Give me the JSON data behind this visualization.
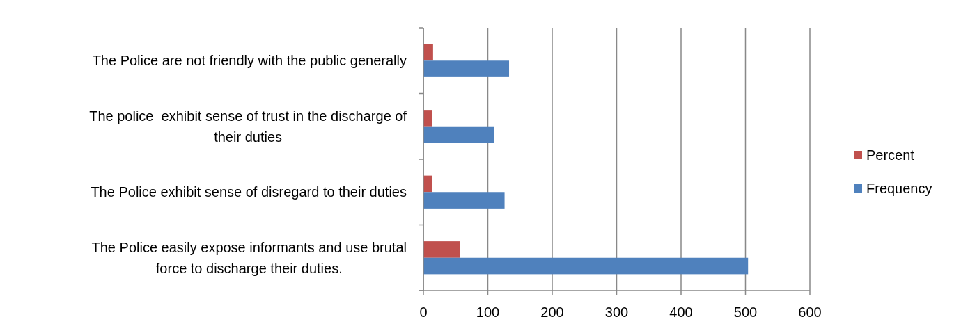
{
  "chart_data": {
    "type": "bar",
    "orientation": "horizontal",
    "categories": [
      "The Police are not friendly with the public generally",
      "The police  exhibit sense of trust in the discharge of\ntheir duties",
      "The Police exhibit sense of disregard to their duties",
      "The Police easily expose informants and use brutal\nforce to discharge their duties."
    ],
    "series": [
      {
        "name": "Percent",
        "color": "#c0504d",
        "values": [
          15,
          13,
          14,
          57
        ]
      },
      {
        "name": "Frequency",
        "color": "#4f81bd",
        "values": [
          133,
          110,
          126,
          504
        ]
      }
    ],
    "xlim": [
      0,
      600
    ],
    "xticks": [
      0,
      100,
      200,
      300,
      400,
      500,
      600
    ],
    "grid": "x",
    "legend": "right"
  }
}
